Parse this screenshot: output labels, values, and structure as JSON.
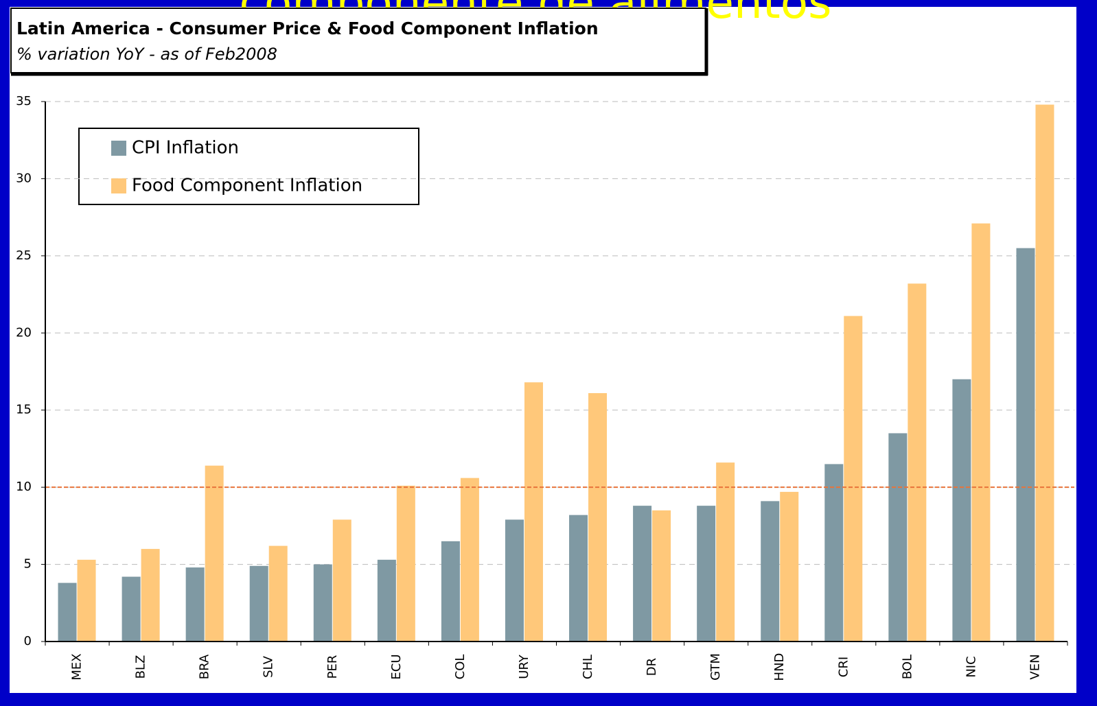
{
  "slide_title": "componente de alimentos",
  "chart_data": {
    "type": "bar",
    "title": "Latin America - Consumer Price & Food Component Inflation",
    "subtitle": "% variation YoY - as of Feb2008",
    "categories": [
      "MEX",
      "BLZ",
      "BRA",
      "SLV",
      "PER",
      "ECU",
      "COL",
      "URY",
      "CHL",
      "DR",
      "GTM",
      "HND",
      "CRI",
      "BOL",
      "NIC",
      "VEN"
    ],
    "series": [
      {
        "name": "CPI Inflation",
        "color": "#7f99a3",
        "values": [
          3.8,
          4.2,
          4.8,
          4.9,
          5.0,
          5.3,
          6.5,
          7.9,
          8.2,
          8.8,
          8.8,
          9.1,
          11.5,
          13.5,
          17.0,
          25.5
        ]
      },
      {
        "name": "Food Component Inflation",
        "color": "#ffc87a",
        "values": [
          5.3,
          6.0,
          11.4,
          6.2,
          7.9,
          10.1,
          10.6,
          16.8,
          16.1,
          8.5,
          11.6,
          9.7,
          21.1,
          23.2,
          27.1,
          34.8
        ]
      }
    ],
    "ylim": [
      0,
      35
    ],
    "yticks": [
      0,
      5,
      10,
      15,
      20,
      25,
      30,
      35
    ],
    "grid": true,
    "reference_line": {
      "value": 10,
      "color": "#e8733a"
    },
    "legend": "upper left"
  }
}
